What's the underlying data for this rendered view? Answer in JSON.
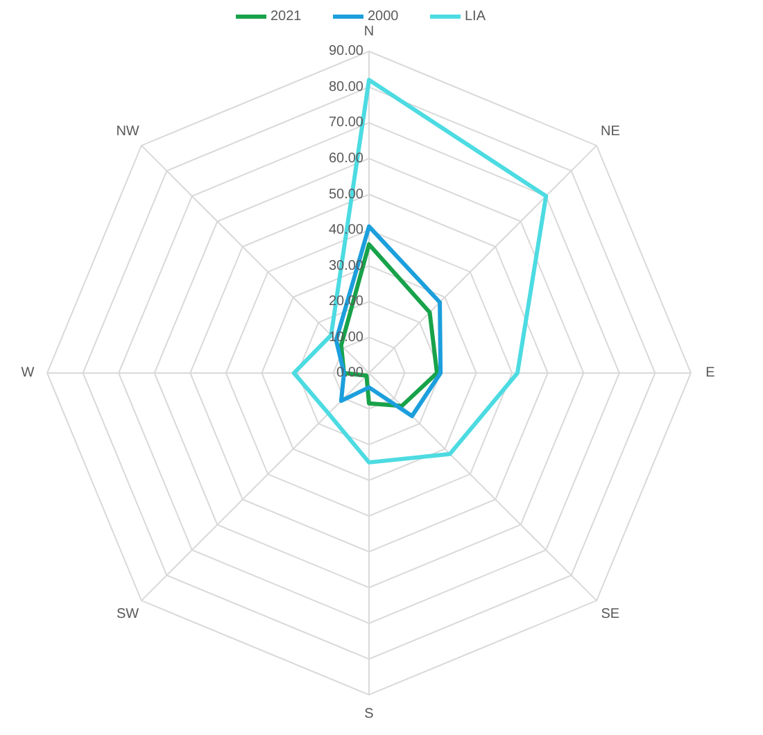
{
  "chart_data": {
    "type": "radar",
    "categories": [
      "N",
      "NE",
      "E",
      "SE",
      "S",
      "SW",
      "W",
      "NW"
    ],
    "series": [
      {
        "name": "2021",
        "color": "#18a24a",
        "values": [
          36,
          24,
          19,
          13,
          8.5,
          1,
          7,
          11
        ]
      },
      {
        "name": "2000",
        "color": "#1c9fdc",
        "values": [
          41,
          28,
          20,
          17,
          4,
          11,
          7,
          13
        ]
      },
      {
        "name": "LIA",
        "color": "#4ddbe2",
        "values": [
          82,
          70,
          41.5,
          32,
          25,
          16,
          21,
          15
        ]
      }
    ],
    "ylim": [
      0,
      90
    ],
    "yticks": [
      {
        "value": 0,
        "label": "0.00"
      },
      {
        "value": 10,
        "label": "10.00"
      },
      {
        "value": 20,
        "label": "20.00"
      },
      {
        "value": 30,
        "label": "30.00"
      },
      {
        "value": 40,
        "label": "40.00"
      },
      {
        "value": 50,
        "label": "50.00"
      },
      {
        "value": 60,
        "label": "60.00"
      },
      {
        "value": 70,
        "label": "70.00"
      },
      {
        "value": 80,
        "label": "80.00"
      },
      {
        "value": 90,
        "label": "90.00"
      }
    ],
    "grid": true,
    "legend": "top",
    "line_style": "solid",
    "marker": "none"
  }
}
